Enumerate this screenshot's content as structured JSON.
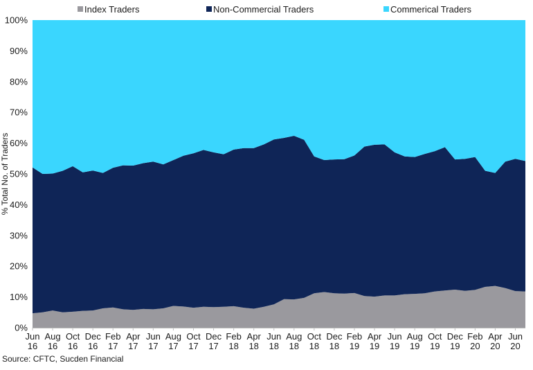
{
  "chart_data": {
    "type": "area",
    "stacked": true,
    "title": "",
    "xlabel": "",
    "ylabel": "% Total No. of Traders",
    "ylim": [
      0,
      100
    ],
    "y_ticks": [
      "0%",
      "10%",
      "20%",
      "30%",
      "40%",
      "50%",
      "60%",
      "70%",
      "80%",
      "90%",
      "100%"
    ],
    "x_ticks": [
      [
        "Jun",
        "16"
      ],
      [
        "Aug",
        "16"
      ],
      [
        "Oct",
        "16"
      ],
      [
        "Dec",
        "16"
      ],
      [
        "Feb",
        "17"
      ],
      [
        "Apr",
        "17"
      ],
      [
        "Jun",
        "17"
      ],
      [
        "Aug",
        "17"
      ],
      [
        "Oct",
        "17"
      ],
      [
        "Dec",
        "17"
      ],
      [
        "Feb",
        "18"
      ],
      [
        "Apr",
        "18"
      ],
      [
        "Jun",
        "18"
      ],
      [
        "Aug",
        "18"
      ],
      [
        "Oct",
        "18"
      ],
      [
        "Dec",
        "18"
      ],
      [
        "Feb",
        "19"
      ],
      [
        "Apr",
        "19"
      ],
      [
        "Jun",
        "19"
      ],
      [
        "Aug",
        "19"
      ],
      [
        "Oct",
        "19"
      ],
      [
        "Dec",
        "19"
      ],
      [
        "Feb",
        "20"
      ],
      [
        "Apr",
        "20"
      ],
      [
        "Jun",
        "20"
      ]
    ],
    "legend_position": "top",
    "x": [
      "2016-06",
      "2016-07",
      "2016-08",
      "2016-09",
      "2016-10",
      "2016-11",
      "2016-12",
      "2017-01",
      "2017-02",
      "2017-03",
      "2017-04",
      "2017-05",
      "2017-06",
      "2017-07",
      "2017-08",
      "2017-09",
      "2017-10",
      "2017-11",
      "2017-12",
      "2018-01",
      "2018-02",
      "2018-03",
      "2018-04",
      "2018-05",
      "2018-06",
      "2018-07",
      "2018-08",
      "2018-09",
      "2018-10",
      "2018-11",
      "2018-12",
      "2019-01",
      "2019-02",
      "2019-03",
      "2019-04",
      "2019-05",
      "2019-06",
      "2019-07",
      "2019-08",
      "2019-09",
      "2019-10",
      "2019-11",
      "2019-12",
      "2020-01",
      "2020-02",
      "2020-03",
      "2020-04",
      "2020-05",
      "2020-06",
      "2020-07"
    ],
    "series": [
      {
        "name": "Index Traders",
        "color": "#9a999e",
        "values": [
          4.7,
          5.0,
          5.6,
          5.0,
          5.2,
          5.5,
          5.6,
          6.3,
          6.6,
          6.0,
          5.8,
          6.1,
          6.0,
          6.3,
          7.1,
          6.9,
          6.5,
          6.8,
          6.7,
          6.8,
          7.0,
          6.5,
          6.2,
          6.8,
          7.6,
          9.3,
          9.2,
          9.7,
          11.2,
          11.6,
          11.2,
          11.1,
          11.3,
          10.3,
          10.1,
          10.5,
          10.5,
          10.9,
          11.0,
          11.2,
          11.8,
          12.1,
          12.4,
          12.0,
          12.3,
          13.3,
          13.6,
          12.9,
          11.9,
          11.8
        ]
      },
      {
        "name": "Non-Commercial Traders",
        "color": "#0f2557",
        "values": [
          47.4,
          45.0,
          44.5,
          46.0,
          47.3,
          45.0,
          45.5,
          44.0,
          45.4,
          46.8,
          46.9,
          47.4,
          48.0,
          46.8,
          47.4,
          49.0,
          50.2,
          51.0,
          50.3,
          49.6,
          50.9,
          51.9,
          52.2,
          52.8,
          53.6,
          52.4,
          53.2,
          51.4,
          44.5,
          42.9,
          43.5,
          43.7,
          44.7,
          48.6,
          49.4,
          49.1,
          46.5,
          44.8,
          44.5,
          45.3,
          45.6,
          46.6,
          42.3,
          42.9,
          43.2,
          37.7,
          36.7,
          41.1,
          43.0,
          42.4
        ]
      },
      {
        "name": "Commerical Traders",
        "color": "#3ad6fe",
        "values": [
          47.9,
          50.0,
          49.9,
          49.0,
          47.5,
          49.5,
          48.9,
          49.7,
          48.0,
          47.2,
          47.3,
          46.5,
          46.0,
          46.9,
          45.5,
          44.1,
          43.3,
          42.2,
          43.0,
          43.6,
          42.1,
          41.6,
          41.6,
          40.4,
          38.8,
          38.3,
          37.6,
          38.9,
          44.3,
          45.5,
          45.3,
          45.2,
          44.0,
          41.1,
          40.5,
          40.4,
          43.0,
          44.3,
          44.5,
          43.5,
          42.6,
          41.3,
          45.3,
          45.1,
          44.5,
          49.0,
          49.7,
          46.0,
          45.1,
          45.8
        ]
      }
    ],
    "source_note": "Source: CFTC, Sucden Financial"
  }
}
